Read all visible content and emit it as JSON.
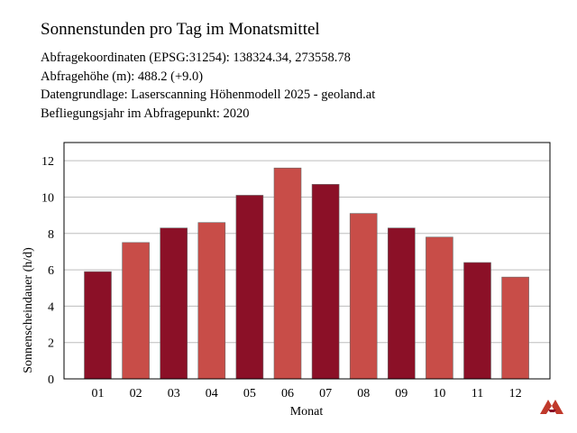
{
  "header": {
    "title": "Sonnenstunden pro Tag im Monatsmittel",
    "info": [
      "Abfragekoordinaten (EPSG:31254): 138324.34, 273558.78",
      "Abfragehöhe (m): 488.2 (+9.0)",
      "Datengrundlage: Laserscanning Höhenmodell 2025 - geoland.at",
      "Befliegungsjahr im Abfragepunkt: 2020"
    ]
  },
  "chart_data": {
    "type": "bar",
    "title": "Sonnenstunden pro Tag im Monatsmittel",
    "xlabel": "Monat",
    "ylabel": "Sonnenscheindauer (h/d)",
    "categories": [
      "01",
      "02",
      "03",
      "04",
      "05",
      "06",
      "07",
      "08",
      "09",
      "10",
      "11",
      "12"
    ],
    "values": [
      5.9,
      7.5,
      8.3,
      8.6,
      10.1,
      11.6,
      10.7,
      9.1,
      8.3,
      7.8,
      6.4,
      5.6
    ],
    "ylim": [
      0,
      13
    ],
    "yticks": [
      0,
      2,
      4,
      6,
      8,
      10,
      12
    ],
    "grid": true,
    "colors": [
      "#8b1027",
      "#c84d48"
    ]
  }
}
